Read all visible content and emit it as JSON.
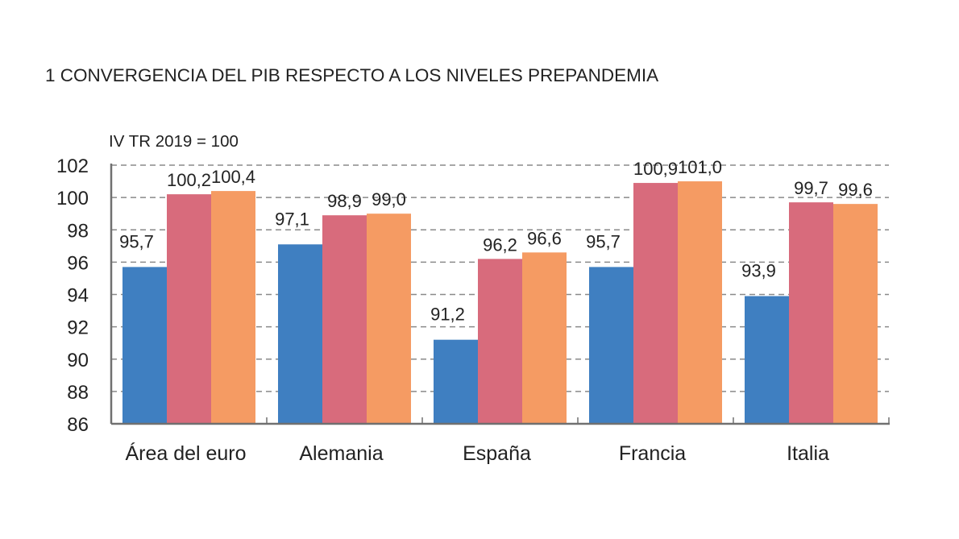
{
  "chart_data": {
    "type": "bar",
    "title": "1  CONVERGENCIA DEL PIB RESPECTO A LOS NIVELES PREPANDEMIA",
    "ylabel": "IV TR 2019 = 100",
    "xlabel": "",
    "ylim": [
      86,
      102
    ],
    "yticks": [
      86,
      88,
      90,
      92,
      94,
      96,
      98,
      100,
      102
    ],
    "grid": true,
    "categories": [
      "Área del euro",
      "Alemania",
      "España",
      "Francia",
      "Italia"
    ],
    "series": [
      {
        "color": "#3f7fc1",
        "values": [
          95.7,
          97.1,
          91.2,
          95.7,
          93.9
        ],
        "labels": [
          "95,7",
          "97,1",
          "91,2",
          "95,7",
          "93,9"
        ]
      },
      {
        "color": "#d86b7c",
        "values": [
          100.2,
          98.9,
          96.2,
          100.9,
          99.7
        ],
        "labels": [
          "100,2",
          "98,9",
          "96,2",
          "100,9",
          "99,7"
        ]
      },
      {
        "color": "#f59b63",
        "values": [
          100.4,
          99.0,
          96.6,
          101.0,
          99.6
        ],
        "labels": [
          "100,4",
          "99,0",
          "96,6",
          "101,0",
          "99,6"
        ]
      }
    ]
  }
}
